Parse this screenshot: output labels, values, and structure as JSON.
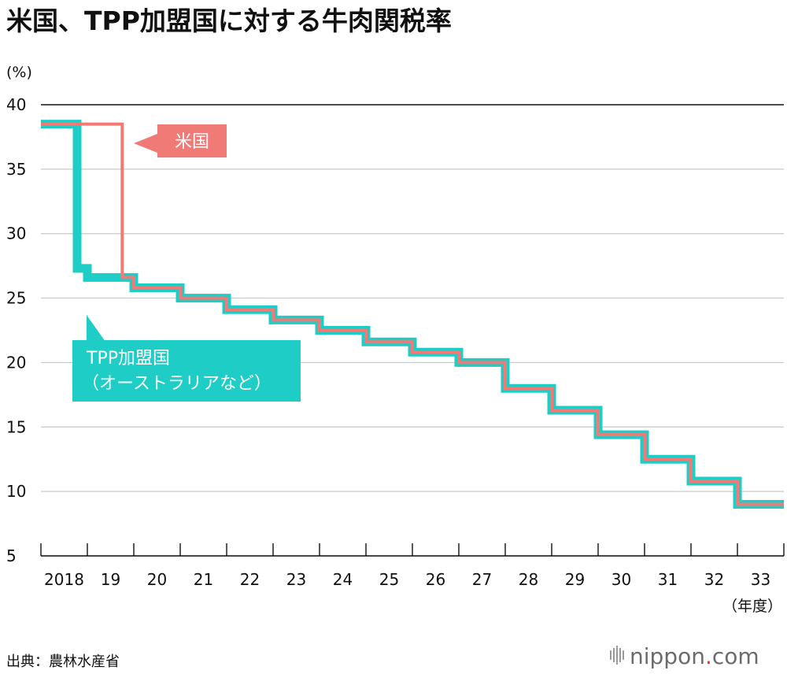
{
  "chart_data": {
    "type": "line",
    "title": "米国、TPP加盟国に対する牛肉関税率",
    "ylabel": "(%)",
    "xlabel": "（年度）",
    "ylim": [
      5,
      40
    ],
    "yticks": [
      40,
      35,
      30,
      25,
      20,
      15,
      10,
      5
    ],
    "x_tick_labels": [
      "2018",
      "19",
      "20",
      "21",
      "22",
      "23",
      "24",
      "25",
      "26",
      "27",
      "28",
      "29",
      "30",
      "31",
      "32",
      "33"
    ],
    "step_line": true,
    "series": [
      {
        "name": "TPP加盟国（オーストラリアなど）",
        "color": "#1ecdc5",
        "points": [
          [
            0,
            38.5
          ],
          [
            0.78,
            38.5
          ],
          [
            0.78,
            27.3
          ],
          [
            1.0,
            27.3
          ],
          [
            1.0,
            26.6
          ],
          [
            2.0,
            26.6
          ],
          [
            2.0,
            25.8
          ],
          [
            3.0,
            25.8
          ],
          [
            3.0,
            25.0
          ],
          [
            4.0,
            25.0
          ],
          [
            4.0,
            24.1
          ],
          [
            5.0,
            24.1
          ],
          [
            5.0,
            23.3
          ],
          [
            6.0,
            23.3
          ],
          [
            6.0,
            22.5
          ],
          [
            7.0,
            22.5
          ],
          [
            7.0,
            21.6
          ],
          [
            8.0,
            21.6
          ],
          [
            8.0,
            20.8
          ],
          [
            9.0,
            20.8
          ],
          [
            9.0,
            20.0
          ],
          [
            10.0,
            20.0
          ],
          [
            10.0,
            18.0
          ],
          [
            11.0,
            18.0
          ],
          [
            11.0,
            16.3
          ],
          [
            12.0,
            16.3
          ],
          [
            12.0,
            14.4
          ],
          [
            13.0,
            14.4
          ],
          [
            13.0,
            12.5
          ],
          [
            14.0,
            12.5
          ],
          [
            14.0,
            10.8
          ],
          [
            15.0,
            10.8
          ],
          [
            15.0,
            9.0
          ],
          [
            16.0,
            9.0
          ]
        ]
      },
      {
        "name": "米国",
        "color": "#f07a76",
        "points": [
          [
            0,
            38.5
          ],
          [
            1.75,
            38.5
          ],
          [
            1.75,
            26.6
          ],
          [
            2.0,
            26.6
          ],
          [
            2.0,
            25.8
          ],
          [
            3.0,
            25.8
          ],
          [
            3.0,
            25.0
          ],
          [
            4.0,
            25.0
          ],
          [
            4.0,
            24.1
          ],
          [
            5.0,
            24.1
          ],
          [
            5.0,
            23.3
          ],
          [
            6.0,
            23.3
          ],
          [
            6.0,
            22.5
          ],
          [
            7.0,
            22.5
          ],
          [
            7.0,
            21.6
          ],
          [
            8.0,
            21.6
          ],
          [
            8.0,
            20.8
          ],
          [
            9.0,
            20.8
          ],
          [
            9.0,
            20.0
          ],
          [
            10.0,
            20.0
          ],
          [
            10.0,
            18.0
          ],
          [
            11.0,
            18.0
          ],
          [
            11.0,
            16.3
          ],
          [
            12.0,
            16.3
          ],
          [
            12.0,
            14.4
          ],
          [
            13.0,
            14.4
          ],
          [
            13.0,
            12.5
          ],
          [
            14.0,
            12.5
          ],
          [
            14.0,
            10.8
          ],
          [
            15.0,
            10.8
          ],
          [
            15.0,
            9.0
          ],
          [
            16.0,
            9.0
          ]
        ]
      }
    ],
    "annotations": [
      {
        "name": "usa-label",
        "text": "米国",
        "series": "米国"
      },
      {
        "name": "tpp-label",
        "lines": [
          "TPP加盟国",
          "（オーストラリアなど）"
        ],
        "series": "TPP加盟国（オーストラリアなど）"
      }
    ]
  },
  "footer": {
    "source": "出典：農林水産省",
    "brand": "nippon",
    "brand_dot": ".",
    "brand_suffix": "com",
    "brand_dot_color": "#e63b2e"
  }
}
